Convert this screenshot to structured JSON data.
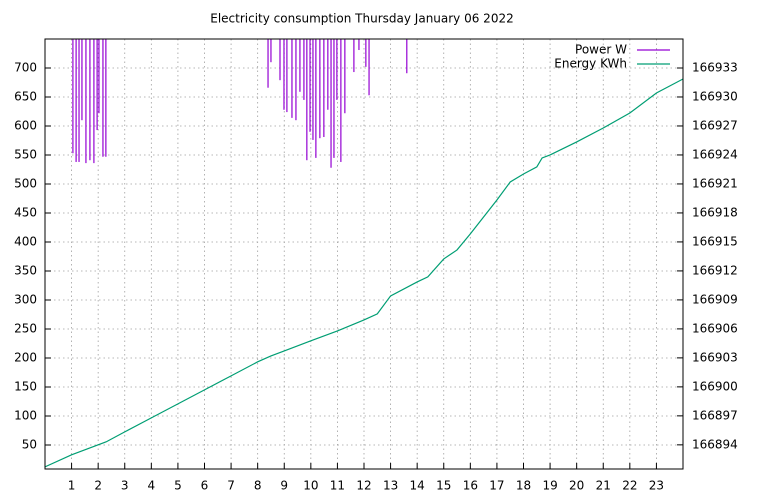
{
  "chart_data": {
    "type": "line",
    "title": "Electricity consumption Thursday January 06 2022",
    "xlim": [
      0,
      24
    ],
    "xticks": [
      1,
      2,
      3,
      4,
      5,
      6,
      7,
      8,
      9,
      10,
      11,
      12,
      13,
      14,
      15,
      16,
      17,
      18,
      19,
      20,
      21,
      22,
      23
    ],
    "ylim": [
      8.6,
      750
    ],
    "yticks": [
      50,
      100,
      150,
      200,
      250,
      300,
      350,
      400,
      450,
      500,
      550,
      600,
      650,
      700
    ],
    "y2lim": [
      166891.5,
      166936
    ],
    "y2ticks": [
      166894,
      166897,
      166900,
      166903,
      166906,
      166909,
      166912,
      166915,
      166918,
      166921,
      166924,
      166927,
      166930,
      166933
    ],
    "grid": true,
    "legend": "top-right",
    "series": [
      {
        "name": "Power W",
        "color": "#9400d3",
        "style": "impulse-from-top",
        "x": [
          1.05,
          1.17,
          1.28,
          1.39,
          1.54,
          1.69,
          1.84,
          1.96,
          2.03,
          2.18,
          2.29,
          8.39,
          8.5,
          8.84,
          8.99,
          9.1,
          9.29,
          9.44,
          9.59,
          9.74,
          9.85,
          9.97,
          10.08,
          10.19,
          10.34,
          10.49,
          10.64,
          10.76,
          10.87,
          10.98,
          11.13,
          11.28,
          11.62,
          11.81,
          12.07,
          12.19,
          13.61
        ],
        "values": [
          553,
          538,
          538,
          610,
          536,
          541,
          536,
          593,
          622,
          547,
          547,
          666,
          710,
          679,
          628,
          624,
          614,
          610,
          659,
          645,
          541,
          590,
          576,
          545,
          579,
          581,
          628,
          528,
          545,
          645,
          538,
          622,
          693,
          731,
          702,
          653,
          691
        ]
      },
      {
        "name": "Energy KWh",
        "color": "#009e73",
        "axis": "y2",
        "x": [
          0,
          1,
          2.3,
          3,
          4,
          5,
          6,
          7,
          8,
          8.5,
          9,
          10,
          11,
          12,
          12.5,
          13,
          14,
          14.4,
          15,
          15.5,
          16,
          17,
          17.5,
          18,
          18.5,
          18.7,
          19,
          20,
          21,
          22,
          23,
          24
        ],
        "values": [
          166891.72,
          166892.97,
          166894.31,
          166895.34,
          166896.79,
          166898.24,
          166899.69,
          166901.14,
          166902.59,
          166903.2,
          166903.72,
          166904.76,
          166905.79,
          166906.93,
          166907.55,
          166909.41,
          166910.86,
          166911.38,
          166913.24,
          166914.17,
          166915.83,
          166919.34,
          166921.2,
          166922.03,
          166922.76,
          166923.69,
          166924.0,
          166925.35,
          166926.79,
          166928.34,
          166930.41,
          166931.86
        ]
      }
    ]
  }
}
